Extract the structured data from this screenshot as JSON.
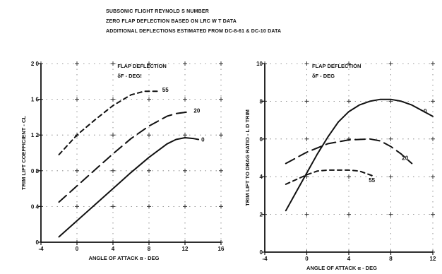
{
  "header": {
    "line1": "SUBSONIC FLIGHT REYNOLD S NUMBER",
    "line2": "ZERO FLAP DEFLECTION BASED ON LRC W T  DATA",
    "line3": "ADDITIONAL DEFLECTIONS ESTIMATED FROM DC-8-61 & DC-10 DATA"
  },
  "chart_data": [
    {
      "type": "line",
      "title": "",
      "xlabel": "ANGLE OF ATTACK  α - DEG",
      "ylabel": "TRIM LIFT COEFFICIENT  - CL",
      "xlim": [
        -4,
        16
      ],
      "ylim": [
        0,
        2.0
      ],
      "x_ticks": [
        -4,
        0,
        4,
        8,
        12,
        16
      ],
      "x_tick_labels": [
        "-4",
        "0",
        "4",
        "8",
        "12",
        "16"
      ],
      "y_ticks": [
        0,
        0.4,
        0.8,
        1.2,
        1.6,
        2.0
      ],
      "y_tick_labels": [
        "0",
        "0 4",
        "0 8",
        "1 2",
        "1 6",
        "2 0"
      ],
      "grid": "dotted",
      "legend": {
        "title": "FLAP DEFLECTION",
        "subtitle": "δF - DEG!",
        "placement": "top-center"
      },
      "series": [
        {
          "name": "55",
          "style": "short-dash",
          "points": [
            [
              -2,
              0.98
            ],
            [
              0,
              1.2
            ],
            [
              2,
              1.37
            ],
            [
              4,
              1.53
            ],
            [
              6,
              1.65
            ],
            [
              7.5,
              1.69
            ],
            [
              9,
              1.69
            ]
          ]
        },
        {
          "name": "20",
          "style": "long-dash",
          "points": [
            [
              -2,
              0.45
            ],
            [
              0,
              0.63
            ],
            [
              2,
              0.81
            ],
            [
              4,
              0.99
            ],
            [
              6,
              1.16
            ],
            [
              8,
              1.3
            ],
            [
              10,
              1.41
            ],
            [
              11,
              1.44
            ],
            [
              12.5,
              1.46
            ]
          ]
        },
        {
          "name": "0",
          "style": "solid",
          "points": [
            [
              -2,
              0.06
            ],
            [
              0,
              0.24
            ],
            [
              2,
              0.42
            ],
            [
              4,
              0.6
            ],
            [
              6,
              0.78
            ],
            [
              8,
              0.95
            ],
            [
              10,
              1.1
            ],
            [
              11,
              1.15
            ],
            [
              12,
              1.17
            ],
            [
              13,
              1.16
            ],
            [
              13.5,
              1.15
            ]
          ]
        }
      ]
    },
    {
      "type": "line",
      "title": "",
      "xlabel": "ANGLE OF ATTACK  α - DEG",
      "ylabel": "TRIM LIFT TO DRAG RATIO  - L D TRIM",
      "xlim": [
        -4,
        12
      ],
      "ylim": [
        0,
        10
      ],
      "x_ticks": [
        -4,
        0,
        4,
        8,
        12
      ],
      "x_tick_labels": [
        "-4",
        "0",
        "4",
        "8",
        "12"
      ],
      "y_ticks": [
        0,
        2,
        4,
        6,
        8,
        10
      ],
      "y_tick_labels": [
        "0",
        "2",
        "4",
        "6",
        "8",
        "10"
      ],
      "grid": "dotted",
      "legend": {
        "title": "FLAP DEFLECTION",
        "subtitle": "δF - DEG",
        "placement": "top-left"
      },
      "series": [
        {
          "name": "0",
          "style": "solid",
          "points": [
            [
              -2,
              2.2
            ],
            [
              -1,
              3.2
            ],
            [
              0,
              4.2
            ],
            [
              1,
              5.2
            ],
            [
              2,
              6.1
            ],
            [
              3,
              6.9
            ],
            [
              4,
              7.45
            ],
            [
              5,
              7.8
            ],
            [
              6,
              8.0
            ],
            [
              7,
              8.1
            ],
            [
              8,
              8.1
            ],
            [
              9,
              8.0
            ],
            [
              10,
              7.8
            ],
            [
              11,
              7.5
            ],
            [
              12,
              7.2
            ]
          ]
        },
        {
          "name": "20",
          "style": "long-dash",
          "points": [
            [
              -2,
              4.7
            ],
            [
              0,
              5.3
            ],
            [
              2,
              5.75
            ],
            [
              4,
              5.95
            ],
            [
              6,
              6.0
            ],
            [
              7,
              5.9
            ],
            [
              8,
              5.6
            ],
            [
              9,
              5.2
            ],
            [
              10,
              4.7
            ]
          ]
        },
        {
          "name": "55",
          "style": "short-dash",
          "points": [
            [
              -2,
              3.6
            ],
            [
              0,
              4.1
            ],
            [
              1,
              4.3
            ],
            [
              2,
              4.35
            ],
            [
              4,
              4.35
            ],
            [
              5,
              4.3
            ],
            [
              6,
              4.1
            ],
            [
              6.5,
              4.0
            ]
          ]
        }
      ]
    }
  ]
}
